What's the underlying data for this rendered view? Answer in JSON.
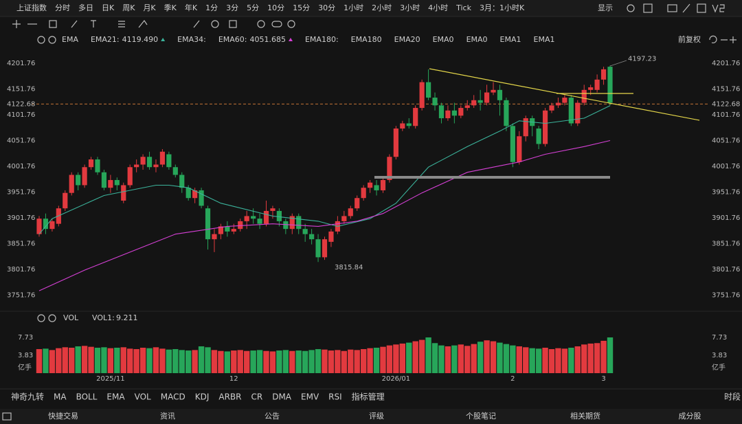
{
  "top_bar": {
    "items": [
      {
        "text": "上证指数",
        "color": "#4f8ff0"
      },
      {
        "text": "分时"
      },
      {
        "text": "多日"
      },
      {
        "text": "日K",
        "color": "#f0803a"
      },
      {
        "text": "周K"
      },
      {
        "text": "月K"
      },
      {
        "text": "季K"
      },
      {
        "text": "年K"
      },
      {
        "text": "1分"
      },
      {
        "text": "3分"
      },
      {
        "text": "5分"
      },
      {
        "text": "10分"
      },
      {
        "text": "15分"
      },
      {
        "text": "30分"
      },
      {
        "text": "1小时"
      },
      {
        "text": "2小时"
      },
      {
        "text": "3小时"
      },
      {
        "text": "4小时"
      },
      {
        "text": "Tick"
      },
      {
        "text": "3月：1小时K"
      }
    ],
    "display": "显示"
  },
  "indicator_row": {
    "items": [
      {
        "text": "EMA",
        "color": "#dddddd"
      },
      {
        "text": "EMA21:",
        "value_label": "4119.490",
        "color": "#3bb39b"
      },
      {
        "text": "EMA34:",
        "color": "#aaaaaa"
      },
      {
        "text": "EMA60:",
        "value_label": "4051.685",
        "color": "#d640d6"
      },
      {
        "text": "EMA180:",
        "color": "#999999"
      },
      {
        "text": "EMA180",
        "color": "#3c5a55"
      },
      {
        "text": "EMA20",
        "color": "#5a3a36"
      },
      {
        "text": "EMA0",
        "color": "#3a5d4f"
      },
      {
        "text": "EMA0",
        "color": "#555555"
      },
      {
        "text": "EMA1",
        "color": "#3f3f5a"
      },
      {
        "text": "EMA1",
        "color": "#5a5236"
      }
    ],
    "adjust": "前复权"
  },
  "chart_data": {
    "type": "candlestick",
    "up_color": "#e23a3f",
    "down_color": "#27a65a",
    "ylim": [
      3726.76,
      4226.76
    ],
    "yticks": [
      3751.76,
      3801.76,
      3851.76,
      3901.76,
      3951.76,
      4001.76,
      4051.76,
      4101.76,
      4151.76,
      4201.76
    ],
    "categories": [
      null,
      null,
      null,
      null,
      null,
      null,
      null,
      null,
      null,
      null,
      null,
      "2025/11",
      null,
      null,
      null,
      null,
      null,
      null,
      null,
      null,
      null,
      null,
      null,
      null,
      null,
      null,
      null,
      null,
      null,
      null,
      "12",
      null,
      null,
      null,
      null,
      null,
      null,
      null,
      null,
      null,
      null,
      null,
      null,
      null,
      null,
      null,
      null,
      null,
      null,
      null,
      null,
      null,
      null,
      null,
      null,
      "2026/01",
      null,
      null,
      null,
      null,
      null,
      null,
      null,
      null,
      null,
      null,
      null,
      null,
      null,
      null,
      null,
      null,
      null,
      "2",
      null,
      null,
      null,
      null,
      null,
      null,
      null,
      null,
      null,
      null,
      null,
      null,
      null,
      "3",
      null
    ],
    "open": [
      3870,
      3900,
      3880,
      3890,
      3920,
      3950,
      3985,
      3965,
      4000,
      4015,
      3990,
      3960,
      3975,
      3935,
      3965,
      4000,
      4005,
      4020,
      4000,
      4005,
      4025,
      4000,
      3985,
      3960,
      3940,
      3955,
      3920,
      3860,
      3870,
      3885,
      3875,
      3880,
      3895,
      3905,
      3900,
      3890,
      3915,
      3915,
      3895,
      3880,
      3905,
      3880,
      3870,
      3860,
      3825,
      3855,
      3875,
      3895,
      3905,
      3920,
      3940,
      3960,
      3965,
      3955,
      3975,
      4020,
      4075,
      4085,
      4080,
      4115,
      4165,
      4135,
      4120,
      4095,
      4110,
      4100,
      4115,
      4120,
      4130,
      4125,
      4145,
      4150,
      4130,
      4080,
      4010,
      4060,
      4095,
      4075,
      4045,
      4110,
      4120,
      4125,
      4135,
      4085,
      4125,
      4150,
      4150,
      4170,
      4195
    ],
    "high": [
      3905,
      3910,
      3900,
      3925,
      3955,
      3990,
      3990,
      4005,
      4020,
      4020,
      3995,
      3985,
      3980,
      3970,
      4005,
      4015,
      4025,
      4030,
      4015,
      4035,
      4030,
      4005,
      3990,
      3965,
      3960,
      3960,
      3925,
      3880,
      3890,
      3895,
      3890,
      3900,
      3915,
      3920,
      3910,
      3935,
      3925,
      3920,
      3900,
      3910,
      3910,
      3890,
      3880,
      3870,
      3865,
      3880,
      3905,
      3915,
      3925,
      3945,
      3965,
      3975,
      3975,
      3980,
      4025,
      4080,
      4090,
      4095,
      4120,
      4170,
      4190,
      4145,
      4125,
      4120,
      4125,
      4120,
      4130,
      4140,
      4150,
      4160,
      4165,
      4160,
      4135,
      4085,
      4070,
      4100,
      4100,
      4080,
      4115,
      4125,
      4135,
      4140,
      4140,
      4130,
      4160,
      4160,
      4180,
      4195,
      4197.23
    ],
    "low": [
      3865,
      3870,
      3875,
      3885,
      3915,
      3945,
      3955,
      3960,
      3995,
      3985,
      3955,
      3950,
      3955,
      3930,
      3960,
      3990,
      3995,
      3995,
      3990,
      4000,
      3995,
      3980,
      3950,
      3935,
      3930,
      3920,
      3840,
      3835,
      3860,
      3865,
      3870,
      3875,
      3880,
      3890,
      3880,
      3885,
      3900,
      3885,
      3870,
      3870,
      3870,
      3855,
      3850,
      3815.84,
      3820,
      3845,
      3870,
      3890,
      3900,
      3915,
      3935,
      3950,
      3945,
      3950,
      3970,
      4015,
      4070,
      4075,
      4075,
      4110,
      4130,
      4110,
      4085,
      4090,
      4085,
      4095,
      4110,
      4115,
      4110,
      4120,
      4140,
      4100,
      4070,
      4000,
      4005,
      4050,
      4060,
      4035,
      4040,
      4105,
      4115,
      4120,
      4080,
      4080,
      4120,
      4140,
      4145,
      4160,
      4120
    ],
    "close": [
      3900,
      3880,
      3895,
      3920,
      3950,
      3985,
      3965,
      4000,
      4015,
      3990,
      3960,
      3975,
      3965,
      3965,
      4000,
      4005,
      4020,
      4000,
      4005,
      4030,
      4000,
      3985,
      3960,
      3940,
      3955,
      3925,
      3860,
      3870,
      3885,
      3875,
      3880,
      3895,
      3905,
      3900,
      3890,
      3915,
      3920,
      3895,
      3880,
      3905,
      3880,
      3870,
      3860,
      3825,
      3860,
      3875,
      3895,
      3905,
      3920,
      3940,
      3960,
      3970,
      3955,
      3975,
      4020,
      4075,
      4085,
      4080,
      4115,
      4165,
      4135,
      4120,
      4095,
      4110,
      4100,
      4115,
      4120,
      4130,
      4125,
      4145,
      4150,
      4130,
      4080,
      4010,
      4060,
      4095,
      4080,
      4045,
      4110,
      4120,
      4125,
      4135,
      4085,
      4125,
      4150,
      4155,
      4170,
      4190,
      4125
    ],
    "series": [
      {
        "name": "EMA21",
        "color": "#3bb39b",
        "x": [
          0,
          2,
          10,
          18,
          20,
          23,
          28,
          36,
          43,
          46,
          51,
          55,
          60,
          66,
          71,
          74,
          78,
          84,
          88
        ],
        "values": [
          3870,
          3900,
          3945,
          3965,
          3965,
          3960,
          3930,
          3905,
          3895,
          3885,
          3900,
          3930,
          4000,
          4040,
          4070,
          4090,
          4085,
          4095,
          4119.49
        ]
      },
      {
        "name": "EMA60",
        "color": "#d640d6",
        "x": [
          0,
          7,
          15,
          21,
          29,
          36,
          43,
          49,
          53,
          59,
          66,
          74,
          78,
          84,
          88
        ],
        "values": [
          3760,
          3800,
          3840,
          3870,
          3885,
          3890,
          3885,
          3895,
          3910,
          3950,
          3990,
          4010,
          4025,
          4040,
          4051.685
        ]
      }
    ],
    "annotations": [
      {
        "text": "4197.23",
        "index": 88,
        "value": 4197.23
      },
      {
        "text": "3815.84",
        "index": 43,
        "value": 3815.84
      }
    ],
    "current_price": {
      "value": 4122.68,
      "label": "4122.68",
      "color": "#e0813a"
    },
    "volume": {
      "name": "VOL",
      "label": "VOL1:",
      "value_label": "9.211",
      "ylim": [
        0,
        7.73
      ],
      "yticks": [
        {
          "value": 0,
          "label": "亿手"
        },
        3.83,
        7.73
      ],
      "values": [
        5.2,
        5.3,
        5.0,
        5.4,
        5.6,
        5.5,
        5.8,
        5.9,
        5.7,
        5.5,
        5.6,
        5.4,
        5.5,
        5.6,
        5.3,
        5.2,
        5.5,
        5.4,
        5.6,
        5.3,
        5.1,
        5.2,
        5.0,
        4.9,
        5.0,
        5.8,
        5.6,
        5.0,
        4.8,
        4.7,
        4.9,
        5.0,
        4.8,
        4.9,
        5.0,
        4.8,
        4.7,
        4.9,
        5.0,
        4.8,
        4.9,
        4.8,
        5.0,
        5.2,
        5.1,
        4.9,
        5.0,
        4.8,
        5.1,
        5.0,
        5.2,
        5.4,
        5.5,
        5.7,
        6.0,
        6.2,
        6.4,
        6.6,
        6.9,
        7.2,
        7.73,
        6.5,
        6.0,
        5.8,
        6.0,
        6.2,
        5.9,
        6.3,
        6.8,
        7.1,
        6.9,
        6.6,
        6.3,
        6.0,
        5.8,
        5.6,
        5.4,
        5.3,
        5.5,
        5.2,
        5.4,
        5.3,
        5.5,
        5.8,
        6.2,
        6.4,
        6.5,
        7.0,
        7.73
      ]
    }
  },
  "tabs": [
    {
      "text": "神奇九转"
    },
    {
      "text": "MA"
    },
    {
      "text": "BOLL"
    },
    {
      "text": "EMA",
      "color": "#f0803a"
    },
    {
      "text": "VOL",
      "color": "#f0803a"
    },
    {
      "text": "MACD"
    },
    {
      "text": "KDJ"
    },
    {
      "text": "ARBR"
    },
    {
      "text": "CR"
    },
    {
      "text": "DMA"
    },
    {
      "text": "EMV"
    },
    {
      "text": "RSI"
    },
    {
      "text": "指标管理",
      "color": "#f0803a"
    }
  ],
  "tabs_right": "时段",
  "bottom_bar": [
    "快捷交易",
    "资讯",
    "公告",
    "评级",
    "个股笔记",
    "相关期货",
    "成分股"
  ]
}
